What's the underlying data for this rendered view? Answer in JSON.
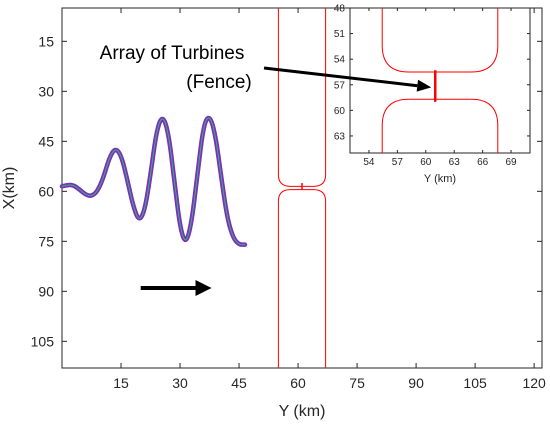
{
  "chart_data": [
    {
      "type": "line",
      "xlabel": "Y (km)",
      "ylabel": "X(km)",
      "xlim": [
        0,
        122
      ],
      "ylim": [
        5,
        113
      ],
      "y_reversed": true,
      "xticks": [
        "15",
        "30",
        "45",
        "60",
        "75",
        "90",
        "105",
        "120"
      ],
      "xtick_values": [
        15,
        30,
        45,
        60,
        75,
        90,
        105,
        120
      ],
      "yticks": [
        "15",
        "30",
        "45",
        "60",
        "75",
        "90",
        "105"
      ],
      "ytick_values": [
        15,
        30,
        45,
        60,
        75,
        90,
        105
      ],
      "grid": false,
      "series": [
        {
          "kind": "wave",
          "color": "#7b2fbe",
          "stroke2": "#3cb371",
          "x": [
            0,
            1.5,
            3,
            4.5,
            6,
            7.5,
            9,
            10.5,
            12,
            13.5,
            15,
            16.5,
            18,
            19.5,
            21,
            22.5,
            24,
            25.5,
            27,
            28.5,
            30,
            31.5,
            33,
            34.5,
            36,
            37.5,
            39,
            40.5,
            42,
            43.5,
            45,
            46.5
          ],
          "y": [
            58.5,
            58,
            58.2,
            59.5,
            61,
            61.5,
            60,
            56,
            50,
            47,
            49,
            56,
            64,
            69,
            66,
            55,
            42,
            37,
            42,
            56,
            71,
            76,
            69,
            54,
            40,
            37,
            43,
            56,
            68,
            74,
            76,
            76
          ]
        },
        {
          "kind": "channel",
          "color": "#ff0000",
          "x_left": 55,
          "x_right": 67,
          "gap_top": 58.5,
          "gap_bottom": 59.5,
          "bend_radius": 3
        }
      ],
      "fence": {
        "color": "#ff0000",
        "x": 61,
        "y_from": 57.5,
        "y_to": 59.5
      },
      "flow_arrow": {
        "color": "#000000",
        "from": [
          20,
          89
        ],
        "to": [
          38,
          89
        ]
      }
    },
    {
      "type": "line",
      "role": "inset",
      "xlabel": "Y (km)",
      "ylabel": "",
      "xlim": [
        52,
        71
      ],
      "ylim": [
        48,
        65
      ],
      "y_reversed": true,
      "xticks": [
        "54",
        "57",
        "60",
        "63",
        "66",
        "69"
      ],
      "xtick_values": [
        54,
        57,
        60,
        63,
        66,
        69
      ],
      "yticks": [
        "48",
        "51",
        "54",
        "57",
        "60",
        "63"
      ],
      "ytick_values": [
        48,
        51,
        54,
        57,
        60,
        63
      ],
      "grid": false,
      "series": [
        {
          "kind": "channel",
          "color": "#ff0000",
          "x_left": 55.4,
          "x_right": 67.6,
          "gap_top": 55.5,
          "gap_bottom": 58.7,
          "bend_radius": 2.8
        }
      ],
      "fence": {
        "color": "#ff0000",
        "x": 61,
        "y_from": 55.3,
        "y_to": 59
      }
    }
  ],
  "annotation": {
    "line1": "Array of Turbines",
    "line2": "(Fence)",
    "arrow_color": "#000000"
  }
}
